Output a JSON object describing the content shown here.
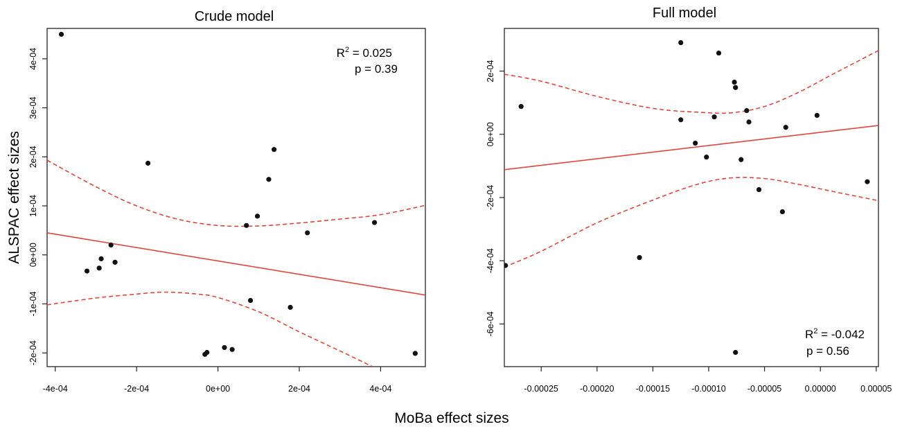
{
  "figure": {
    "ylabel": "ALSPAC effect sizes",
    "xlabel": "MoBa effect sizes",
    "colors": {
      "points": "#111111",
      "fit": "#e0463c",
      "ci": "#e0463c",
      "frame": "#222222"
    }
  },
  "chart_data": [
    {
      "type": "scatter",
      "title": "Crude model",
      "stat_r2_prefix": "R",
      "stat_r2_value": " = 0.025",
      "stat_p": "p = 0.39",
      "xlim": [
        -0.00042,
        0.00051
      ],
      "ylim": [
        -0.000228,
        0.000462
      ],
      "x_ticks": [
        -0.0004,
        -0.0002,
        0,
        0.0002,
        0.0004
      ],
      "x_tick_labels": [
        "-4e-04",
        "-2e-04",
        "0e+00",
        "2e-04",
        "4e-04"
      ],
      "y_ticks": [
        -0.0002,
        -0.0001,
        0,
        0.0001,
        0.0002,
        0.0003,
        0.0004
      ],
      "y_tick_labels": [
        "-2e-04",
        "-1e-04",
        "0e+00",
        "1e-04",
        "2e-04",
        "3e-04",
        "4e-04"
      ],
      "points": [
        [
          -0.000385,
          0.00045
        ],
        [
          -0.000172,
          0.000187
        ],
        [
          -0.000263,
          2e-05
        ],
        [
          -0.000287,
          -8e-06
        ],
        [
          -0.000322,
          -3.3e-05
        ],
        [
          -0.000292,
          -2.7e-05
        ],
        [
          -0.000253,
          -1.5e-05
        ],
        [
          0.000138,
          0.000215
        ],
        [
          0.000125,
          0.000154
        ],
        [
          9.7e-05,
          7.9e-05
        ],
        [
          7e-05,
          6e-05
        ],
        [
          0.00022,
          4.5e-05
        ],
        [
          0.000385,
          6.6e-05
        ],
        [
          8e-05,
          -9.3e-05
        ],
        [
          0.000178,
          -0.000107
        ],
        [
          -3.2e-05,
          -0.000203
        ],
        [
          -2.7e-05,
          -0.000199
        ],
        [
          1.6e-05,
          -0.000189
        ],
        [
          3.5e-05,
          -0.000193
        ],
        [
          0.000485,
          -0.000201
        ]
      ],
      "fit": {
        "x0": -0.00042,
        "y0": 4.5e-05,
        "x1": 0.00051,
        "y1": -8.2e-05
      },
      "ci_upper": [
        [
          -0.00042,
          0.000193
        ],
        [
          -0.0003,
          0.000139
        ],
        [
          -0.0002,
          0.0001
        ],
        [
          -0.0001,
          7.3e-05
        ],
        [
          0.0,
          6e-05
        ],
        [
          0.0001,
          5.9e-05
        ],
        [
          0.0002,
          6.5e-05
        ],
        [
          0.0003,
          7.3e-05
        ],
        [
          0.0004,
          8.2e-05
        ],
        [
          0.00051,
          0.000101
        ]
      ],
      "ci_lower": [
        [
          -0.00042,
          -0.000102
        ],
        [
          -0.0003,
          -8.8e-05
        ],
        [
          -0.0002,
          -8e-05
        ],
        [
          -0.00013,
          -7.6e-05
        ],
        [
          -5e-05,
          -8e-05
        ],
        [
          0.0,
          -8.7e-05
        ],
        [
          0.0001,
          -0.000116
        ],
        [
          0.0002,
          -0.000157
        ],
        [
          0.0003,
          -0.000196
        ],
        [
          0.00038,
          -0.000228
        ]
      ]
    },
    {
      "type": "scatter",
      "title": "Full model",
      "stat_r2_prefix": "R",
      "stat_r2_value": " = -0.042",
      "stat_p": "p = 0.56",
      "xlim": [
        -0.000283,
        5.2e-05
      ],
      "ylim": [
        -0.000735,
        0.000335
      ],
      "x_ticks": [
        -0.00025,
        -0.0002,
        -0.00015,
        -0.0001,
        -5e-05,
        0,
        5e-05
      ],
      "x_tick_labels": [
        "-0.00025",
        "-0.00020",
        "-0.00015",
        "-0.00010",
        "-0.00005",
        "0.00000",
        "0.00005"
      ],
      "y_ticks": [
        -0.0006,
        -0.0004,
        -0.0002,
        0,
        0.0002
      ],
      "y_tick_labels": [
        "-6e-04",
        "-4e-04",
        "-2e-04",
        "0e+00",
        "2e-04"
      ],
      "points": [
        [
          -0.000268,
          8.8e-05
        ],
        [
          -0.000125,
          0.00029
        ],
        [
          -9.1e-05,
          0.000257
        ],
        [
          -7.7e-05,
          0.000165
        ],
        [
          -7.6e-05,
          0.000148
        ],
        [
          -0.000125,
          4.6e-05
        ],
        [
          -9.5e-05,
          5.5e-05
        ],
        [
          -6.6e-05,
          7.5e-05
        ],
        [
          -6.4e-05,
          3.9e-05
        ],
        [
          -0.000112,
          -2.8e-05
        ],
        [
          -0.000102,
          -7.2e-05
        ],
        [
          -7.1e-05,
          -8e-05
        ],
        [
          -5.5e-05,
          -0.000175
        ],
        [
          -3.4e-05,
          -0.000245
        ],
        [
          -3.1e-05,
          2.2e-05
        ],
        [
          -3e-06,
          6e-05
        ],
        [
          4.2e-05,
          -0.00015
        ],
        [
          -0.000282,
          -0.000415
        ],
        [
          -0.000162,
          -0.00039
        ],
        [
          -7.6e-05,
          -0.00069
        ]
      ],
      "fit": {
        "x0": -0.000283,
        "y0": -0.000112,
        "x1": 5.2e-05,
        "y1": 2.8e-05
      },
      "ci_upper": [
        [
          -0.000283,
          0.00019
        ],
        [
          -0.00025,
          0.000168
        ],
        [
          -0.0002,
          0.00012
        ],
        [
          -0.00015,
          8.2e-05
        ],
        [
          -0.00011,
          7e-05
        ],
        [
          -8e-05,
          6.8e-05
        ],
        [
          -5e-05,
          8.8e-05
        ],
        [
          -2e-05,
          0.000132
        ],
        [
          1e-05,
          0.000188
        ],
        [
          5.2e-05,
          0.000265
        ]
      ],
      "ci_lower": [
        [
          -0.000283,
          -0.00042
        ],
        [
          -0.00025,
          -0.00037
        ],
        [
          -0.0002,
          -0.00028
        ],
        [
          -0.00015,
          -0.000208
        ],
        [
          -0.00011,
          -0.000158
        ],
        [
          -8e-05,
          -0.000138
        ],
        [
          -5e-05,
          -0.00014
        ],
        [
          -2e-05,
          -0.000158
        ],
        [
          1e-05,
          -0.00018
        ],
        [
          5.2e-05,
          -0.00021
        ]
      ]
    }
  ]
}
